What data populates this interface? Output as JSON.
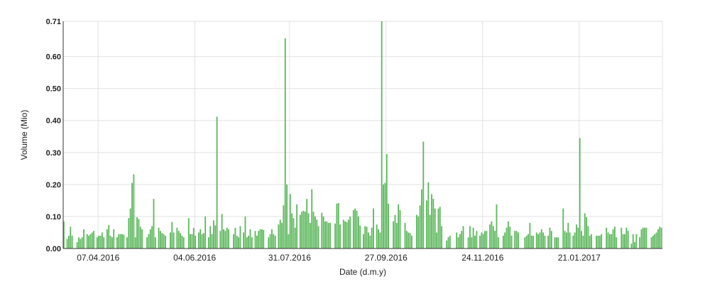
{
  "chart_data": {
    "type": "bar",
    "xlabel": "Date (d.m.y)",
    "ylabel": "Volume (Mio)",
    "ylim": [
      0,
      0.71
    ],
    "yticks": [
      "0.00",
      "0.10",
      "0.20",
      "0.30",
      "0.40",
      "0.50",
      "0.60",
      "0.71"
    ],
    "xticks": [
      "07.04.2016",
      "04.06.2016",
      "31.07.2016",
      "27.09.2016",
      "24.11.2016",
      "21.01.2017"
    ],
    "grid": true,
    "legend": "none",
    "bar_color": "#5cb85c",
    "start_date": "2016-03-17",
    "series": [
      {
        "values": [
          0.085,
          0.0,
          0.03,
          0.04,
          0.068,
          0.04,
          0.0,
          0.0,
          0.02,
          0.035,
          0.03,
          0.035,
          0.06,
          0.0,
          0.045,
          0.04,
          0.045,
          0.05,
          0.055,
          0.0,
          0.035,
          0.04,
          0.04,
          0.05,
          0.035,
          0.0,
          0.06,
          0.073,
          0.04,
          0.035,
          0.06,
          0.0,
          0.035,
          0.045,
          0.045,
          0.045,
          0.043,
          0.0,
          0.035,
          0.095,
          0.125,
          0.205,
          0.232,
          0.035,
          0.098,
          0.092,
          0.068,
          0.06,
          0.0,
          0.0,
          0.035,
          0.045,
          0.06,
          0.07,
          0.155,
          0.035,
          0.0,
          0.065,
          0.055,
          0.048,
          0.045,
          0.04,
          0.0,
          0.0,
          0.05,
          0.083,
          0.05,
          0.0,
          0.065,
          0.055,
          0.048,
          0.04,
          0.035,
          0.0,
          0.0,
          0.095,
          0.045,
          0.045,
          0.064,
          0.04,
          0.0,
          0.05,
          0.06,
          0.045,
          0.048,
          0.1,
          0.0,
          0.035,
          0.07,
          0.045,
          0.088,
          0.072,
          0.412,
          0.0,
          0.055,
          0.108,
          0.06,
          0.055,
          0.065,
          0.06,
          0.0,
          0.0,
          0.045,
          0.065,
          0.04,
          0.035,
          0.07,
          0.0,
          0.05,
          0.1,
          0.035,
          0.04,
          0.06,
          0.035,
          0.0,
          0.055,
          0.04,
          0.055,
          0.06,
          0.06,
          0.058,
          0.0,
          0.0,
          0.035,
          0.045,
          0.06,
          0.045,
          0.04,
          0.0,
          0.075,
          0.09,
          0.08,
          0.135,
          0.657,
          0.2,
          0.045,
          0.17,
          0.11,
          0.095,
          0.065,
          0.138,
          0.0,
          0.105,
          0.115,
          0.118,
          0.115,
          0.155,
          0.11,
          0.08,
          0.185,
          0.115,
          0.1,
          0.09,
          0.07,
          0.0,
          0.112,
          0.1,
          0.085,
          0.085,
          0.08,
          0.08,
          0.0,
          0.0,
          0.078,
          0.14,
          0.142,
          0.075,
          0.0,
          0.09,
          0.085,
          0.082,
          0.09,
          0.1,
          0.0,
          0.12,
          0.125,
          0.118,
          0.1,
          0.072,
          0.0,
          0.045,
          0.07,
          0.068,
          0.05,
          0.04,
          0.065,
          0.125,
          0.0,
          0.075,
          0.06,
          0.05,
          0.71,
          0.2,
          0.205,
          0.295,
          0.14,
          0.0,
          0.0,
          0.085,
          0.105,
          0.08,
          0.138,
          0.12,
          0.0,
          0.0,
          0.08,
          0.055,
          0.05,
          0.048,
          0.04,
          0.0,
          0.0,
          0.105,
          0.1,
          0.135,
          0.185,
          0.334,
          0.0,
          0.15,
          0.207,
          0.105,
          0.17,
          0.155,
          0.125,
          0.05,
          0.125,
          0.13,
          0.07,
          0.0,
          0.0,
          0.025,
          0.035,
          0.04,
          0.0,
          0.0,
          0.0,
          0.05,
          0.035,
          0.045,
          0.055,
          0.07,
          0.0,
          0.0,
          0.035,
          0.07,
          0.035,
          0.065,
          0.04,
          0.055,
          0.0,
          0.04,
          0.05,
          0.045,
          0.055,
          0.055,
          0.0,
          0.075,
          0.085,
          0.07,
          0.055,
          0.138,
          0.035,
          0.0,
          0.0,
          0.04,
          0.05,
          0.065,
          0.085,
          0.068,
          0.04,
          0.0,
          0.055,
          0.055,
          0.05,
          0.0,
          0.0,
          0.0,
          0.035,
          0.04,
          0.045,
          0.08,
          0.04,
          0.04,
          0.0,
          0.05,
          0.045,
          0.05,
          0.06,
          0.05,
          0.04,
          0.0,
          0.04,
          0.065,
          0.055,
          0.0,
          0.035,
          0.035,
          0.035,
          0.0,
          0.0,
          0.125,
          0.055,
          0.05,
          0.08,
          0.05,
          0.0,
          0.04,
          0.05,
          0.075,
          0.065,
          0.345,
          0.055,
          0.04,
          0.11,
          0.098,
          0.07,
          0.04,
          0.045,
          0.0,
          0.0,
          0.04,
          0.04,
          0.04,
          0.045,
          0.0,
          0.0,
          0.065,
          0.05,
          0.045,
          0.045,
          0.06,
          0.068,
          0.035,
          0.0,
          0.0,
          0.065,
          0.045,
          0.045,
          0.065,
          0.055,
          0.0,
          0.015,
          0.045,
          0.02,
          0.045,
          0.0,
          0.035,
          0.06,
          0.065,
          0.065,
          0.065,
          0.0,
          0.0,
          0.035,
          0.04,
          0.045,
          0.05,
          0.06,
          0.068,
          0.065
        ]
      }
    ]
  }
}
